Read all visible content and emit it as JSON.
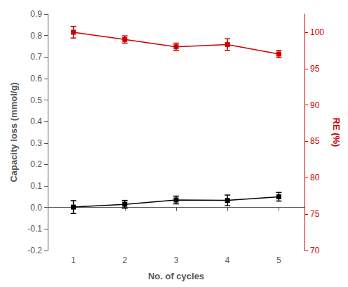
{
  "chart_data": {
    "type": "line",
    "xlabel": "No. of cycles",
    "ylabel": "Capacity loss (mmol/g)",
    "y2label": "RE (%)",
    "x": [
      1,
      2,
      3,
      4,
      5
    ],
    "xlim": [
      0.5,
      5.5
    ],
    "xticks": [
      1,
      2,
      3,
      4,
      5
    ],
    "ylim": [
      -0.2,
      0.9
    ],
    "yticks": [
      -0.2,
      -0.1,
      {
        "value": 0.0,
        "label": "0.0"
      },
      0.1,
      0.2,
      0.3,
      0.4,
      0.5,
      0.6,
      0.7,
      0.8,
      0.9
    ],
    "y2lim": [
      70,
      102.5
    ],
    "y2ticks": [
      70,
      75,
      80,
      85,
      90,
      95,
      100
    ],
    "grid": false,
    "marker": "square",
    "series": [
      {
        "color": "#000000",
        "axis": "y",
        "values": [
          0.002,
          0.015,
          0.035,
          0.033,
          0.05
        ],
        "errors": [
          0.03,
          0.018,
          0.018,
          0.025,
          0.02
        ]
      },
      {
        "color": "#cc0000",
        "axis": "y2",
        "values": [
          100.0,
          99.0,
          98.0,
          98.3,
          97.0
        ],
        "errors": [
          0.8,
          0.5,
          0.5,
          0.8,
          0.5
        ]
      }
    ]
  }
}
